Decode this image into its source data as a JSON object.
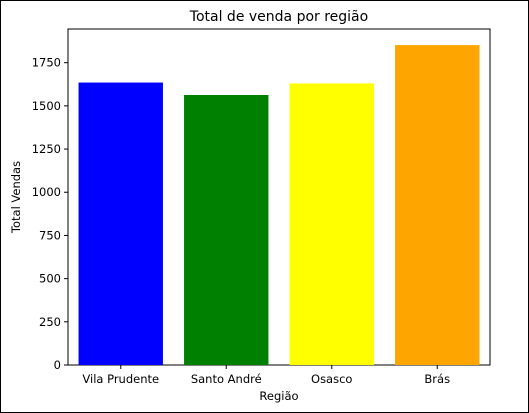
{
  "chart_data": {
    "type": "bar",
    "title": "Total de venda por região",
    "xlabel": "Região",
    "ylabel": "Total Vendas",
    "categories": [
      "Vila Prudente",
      "Santo André",
      "Osasco",
      "Brás"
    ],
    "values": [
      1635,
      1563,
      1630,
      1852
    ],
    "colors": [
      "#0000ff",
      "#008000",
      "#ffff00",
      "#ffa500"
    ],
    "ylim": [
      0,
      1945
    ],
    "yticks": [
      0,
      250,
      500,
      750,
      1000,
      1250,
      1500,
      1750
    ],
    "grid": false,
    "legend": "none"
  }
}
